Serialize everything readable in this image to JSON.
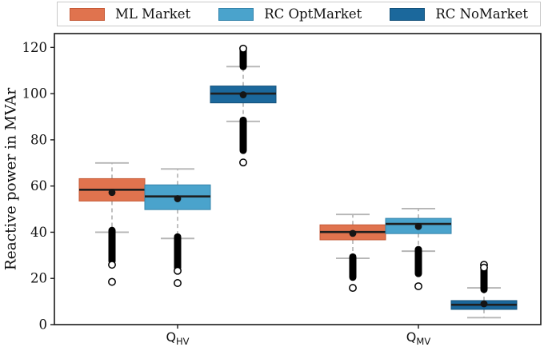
{
  "chart_data": {
    "type": "boxplot",
    "title": "",
    "ylabel": "Reactive power in MVAr",
    "xlabel": "",
    "ylim": [
      0,
      126
    ],
    "yticks": [
      0,
      20,
      40,
      60,
      80,
      100,
      120
    ],
    "grid": false,
    "legend_position": "top-outside",
    "groups": [
      {
        "label": "Q",
        "sub": "HV"
      },
      {
        "label": "Q",
        "sub": "MV"
      }
    ],
    "style": {
      "whisker_color": "#b5b5b5",
      "median_color": "#1f1f1f",
      "mean_color": "#151515",
      "outlier_color": "#000000",
      "frame_color": "#1a1a1a",
      "background": "#ffffff"
    },
    "series": [
      {
        "name": "ML Market",
        "color": "#e0734e",
        "edge": "#c55a37",
        "boxes": [
          {
            "group": "Q_HV",
            "whislo": 40.0,
            "q1": 53.5,
            "med": 58.4,
            "mean": 57.2,
            "q3": 63.2,
            "whishi": 70.0,
            "flier_band_hi": null,
            "flier_dots_hi": [],
            "flier_band_lo": [
              27.5,
              40.8
            ],
            "flier_dots_lo": [
              25.9,
              18.5
            ]
          },
          {
            "group": "Q_MV",
            "whislo": 28.7,
            "q1": 36.7,
            "med": 40.1,
            "mean": 39.5,
            "q3": 43.2,
            "whishi": 47.7,
            "flier_band_hi": null,
            "flier_dots_hi": [],
            "flier_band_lo": [
              20.5,
              29.3
            ],
            "flier_dots_lo": [
              15.9
            ]
          }
        ]
      },
      {
        "name": "RC OptMarket",
        "color": "#4aa3cc",
        "edge": "#3584ab",
        "boxes": [
          {
            "group": "Q_HV",
            "whislo": 37.3,
            "q1": 49.8,
            "med": 55.5,
            "mean": 54.5,
            "q3": 60.5,
            "whishi": 67.4,
            "flier_band_hi": null,
            "flier_dots_hi": [],
            "flier_band_lo": [
              24.6,
              38.0
            ],
            "flier_dots_lo": [
              23.3,
              18.0
            ]
          },
          {
            "group": "Q_MV",
            "whislo": 31.8,
            "q1": 39.4,
            "med": 43.6,
            "mean": 42.5,
            "q3": 46.0,
            "whishi": 50.2,
            "flier_band_hi": null,
            "flier_dots_hi": [],
            "flier_band_lo": [
              22.1,
              32.5
            ],
            "flier_dots_lo": [
              16.6
            ]
          }
        ]
      },
      {
        "name": "RC NoMarket",
        "color": "#1b689c",
        "edge": "#14517a",
        "boxes": [
          {
            "group": "Q_HV",
            "whislo": 88.0,
            "q1": 96.0,
            "med": 100.0,
            "mean": 99.5,
            "q3": 103.3,
            "whishi": 111.7,
            "flier_band_hi": [
              111.7,
              118.8
            ],
            "flier_dots_hi": [
              119.5
            ],
            "flier_band_lo": [
              75.4,
              88.5
            ],
            "flier_dots_lo": [
              70.2
            ]
          },
          {
            "group": "Q_MV",
            "whislo": 3.0,
            "q1": 6.6,
            "med": 8.6,
            "mean": 9.0,
            "q3": 10.4,
            "whishi": 15.9,
            "flier_band_hi": [
              15.2,
              23.8
            ],
            "flier_dots_hi": [
              25.9,
              24.7
            ],
            "flier_band_lo": null,
            "flier_dots_lo": []
          }
        ]
      }
    ]
  }
}
